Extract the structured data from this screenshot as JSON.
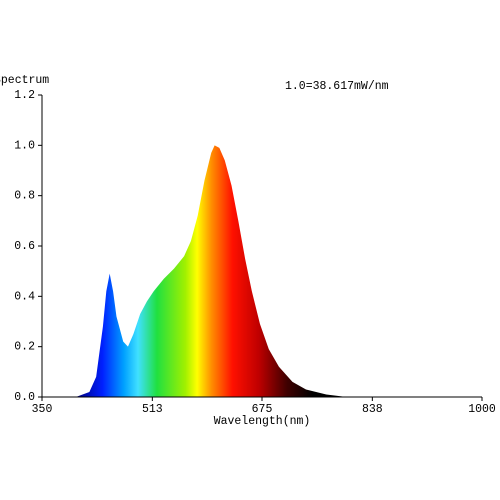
{
  "chart_data": {
    "type": "area",
    "y_label": "Spectrum",
    "x_label": "Wavelength(nm)",
    "annotation": "1.0=38.617mW/nm",
    "x": [
      350,
      380,
      400,
      420,
      430,
      440,
      445,
      450,
      455,
      460,
      470,
      477,
      485,
      495,
      505,
      515,
      530,
      545,
      560,
      570,
      580,
      590,
      600,
      605,
      612,
      620,
      630,
      640,
      650,
      660,
      672,
      685,
      700,
      720,
      740,
      770,
      800,
      1000
    ],
    "values": [
      0,
      0,
      0,
      0.02,
      0.08,
      0.28,
      0.42,
      0.49,
      0.42,
      0.32,
      0.22,
      0.2,
      0.25,
      0.33,
      0.38,
      0.42,
      0.47,
      0.51,
      0.56,
      0.62,
      0.72,
      0.86,
      0.97,
      1.0,
      0.99,
      0.94,
      0.84,
      0.7,
      0.55,
      0.42,
      0.29,
      0.19,
      0.12,
      0.06,
      0.03,
      0.01,
      0,
      0
    ],
    "xlim": [
      350,
      1000
    ],
    "ylim": [
      0,
      1.2
    ],
    "xticks": [
      350,
      513,
      675,
      838,
      1000
    ],
    "yticks": [
      {
        "value": 0,
        "label": "0.0"
      },
      0.2,
      0.4,
      0.6,
      0.8,
      {
        "value": 1,
        "label": "1.0"
      },
      1.2
    ]
  }
}
